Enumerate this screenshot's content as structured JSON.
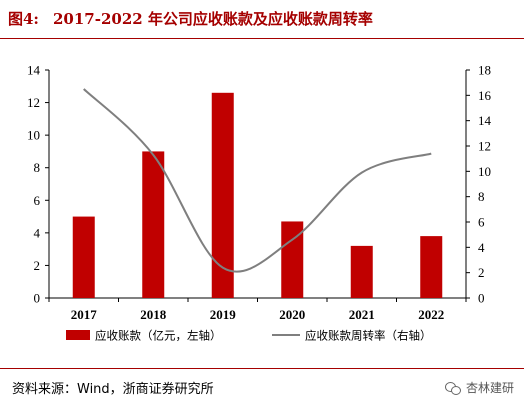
{
  "header": {
    "figure_number": "图4:",
    "title": "2017-2022 年公司应收账款及应收账款周转率"
  },
  "chart_data": {
    "type": "bar",
    "categories": [
      "2017",
      "2018",
      "2019",
      "2020",
      "2021",
      "2022"
    ],
    "series": [
      {
        "name": "应收账款（亿元，左轴）",
        "type": "bar",
        "axis": "left",
        "values": [
          5.0,
          9.0,
          12.6,
          4.7,
          3.2,
          3.8
        ],
        "color": "#c00000"
      },
      {
        "name": "应收账款周转率（右轴）",
        "type": "line",
        "axis": "right",
        "values": [
          16.5,
          11.3,
          2.4,
          4.6,
          9.9,
          11.4
        ],
        "color": "#7f7f7f",
        "smooth": true
      }
    ],
    "left_axis": {
      "min": 0,
      "max": 14,
      "step": 2,
      "ticks": [
        "0",
        "2",
        "4",
        "6",
        "8",
        "10",
        "12",
        "14"
      ]
    },
    "right_axis": {
      "min": 0,
      "max": 18,
      "step": 2,
      "ticks": [
        "0",
        "2",
        "4",
        "6",
        "8",
        "10",
        "12",
        "14",
        "16",
        "18"
      ]
    },
    "grid": false,
    "legend_position": "bottom"
  },
  "footer": {
    "source": "资料来源：Wind，浙商证券研究所",
    "watermark": "杏林建研"
  }
}
